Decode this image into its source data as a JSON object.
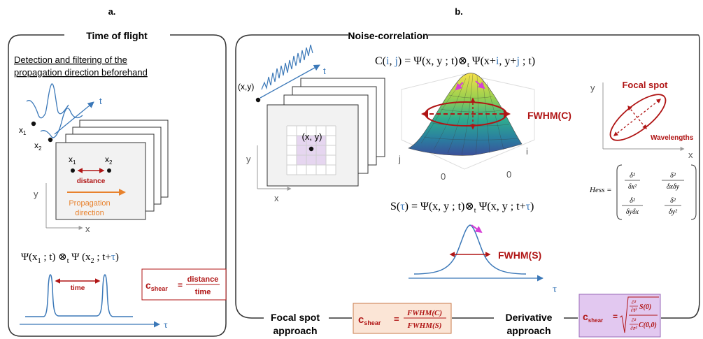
{
  "panel_a": {
    "letter": "a.",
    "title": "Time of flight",
    "subtitle_line1": "Detection and filtering of the",
    "subtitle_line2": "propagation direction beforehand",
    "axis_t": "t",
    "axis_y": "y",
    "axis_x": "x",
    "x1": "x",
    "x1_sub": "1",
    "x2": "x",
    "x2_sub": "2",
    "distance_label": "distance",
    "propagation_line1": "Propagation",
    "propagation_line2": "direction",
    "formula": {
      "p1": "Ψ(x",
      "s1": "1",
      "p2": " ; t) ⊗",
      "s2": "t",
      "p3": " Ψ (x",
      "s3": "2",
      "p4": " ; t+",
      "tau": "τ",
      "p5": ")"
    },
    "time_label": "time",
    "tau_axis": "τ",
    "shear_formula": {
      "c": "c",
      "sub": "shear",
      "eq": "=",
      "num": "distance",
      "den": "time"
    }
  },
  "panel_b": {
    "letter": "b.",
    "title": "Noise-correlation",
    "axis_t": "t",
    "xy_label": "(x,y)",
    "xy_grid_label": "(x, y)",
    "axis_y": "y",
    "axis_x": "x",
    "c_formula": {
      "p1": "C(",
      "i1": "i",
      "p2": ", ",
      "j1": "j",
      "p3": ") = Ψ(x, y ; t)⊗",
      "s1": "t",
      "p4": " Ψ(x+",
      "i2": "i",
      "p5": ", y+",
      "j2": "j",
      "p6": " ; t)"
    },
    "fwhm_c": "FWHM(C)",
    "axis_j": "j",
    "axis_i": "i",
    "tick_0a": "0",
    "tick_0b": "0",
    "focal_title": "Focal spot",
    "focal_axis_y": "y",
    "focal_axis_x": "x",
    "wavelengths": "Wavelengths",
    "hess_label": "Hess =",
    "hess": {
      "a11_num": "δ²",
      "a11_den": "δx²",
      "a12_num": "δ²",
      "a12_den": "δxδy",
      "a21_num": "δ²",
      "a21_den": "δyδx",
      "a22_num": "δ²",
      "a22_den": "δy²"
    },
    "s_formula": {
      "p1": "S(",
      "tau1": "τ",
      "p2": ") = Ψ(x, y ; t)⊗",
      "s1": "t",
      "p3": " Ψ(x, y ; t+",
      "tau2": "τ",
      "p4": ")"
    },
    "fwhm_s": "FWHM(S)",
    "tau_axis": "τ",
    "focal_approach_line1": "Focal spot",
    "focal_approach_line2": "approach",
    "focal_shear": {
      "c": "c",
      "sub": "shear",
      "eq": "=",
      "num": "FWHM(C)",
      "den": "FWHM(S)"
    },
    "derivative_line1": "Derivative",
    "derivative_line2": "approach",
    "deriv_shear": {
      "c": "c",
      "sub": "shear",
      "eq": "=",
      "num_op": "∂²",
      "num_op_den": "∂t²",
      "num_fn": "S(0)",
      "den_op": "∂²",
      "den_op_den": "∂r²",
      "den_fn": "C(0,0)"
    }
  },
  "colors": {
    "dark_red": "#b01515",
    "blue": "#3b78b8",
    "orange": "#e8822d",
    "magenta": "#d640d6",
    "focal_box_fill": "#fbe5d6",
    "deriv_box_fill": "#e2c8f0",
    "grid_highlight": "#e6d6f0"
  }
}
